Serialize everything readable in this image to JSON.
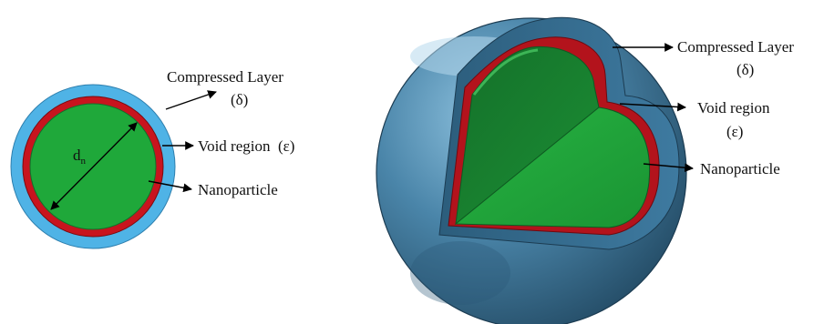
{
  "figure": {
    "left_diagram": {
      "diameter_symbol": "d",
      "diameter_subscript": "n",
      "labels": {
        "compressed_layer": "Compressed Layer",
        "compressed_layer_symbol": "(δ)",
        "void_region": "Void region  (ε)",
        "nanoparticle": "Nanoparticle"
      }
    },
    "right_diagram": {
      "labels": {
        "compressed_layer": "Compressed Layer",
        "compressed_layer_symbol": "(δ)",
        "void_region": "Void region",
        "void_region_symbol": "(ε)",
        "nanoparticle": "Nanoparticle"
      }
    },
    "colors": {
      "compressed_layer_2d": "#4fb3e6",
      "void_region": "#c8141e",
      "nanoparticle": "#1fa83a",
      "outer_shell_3d": "#3d7497",
      "outer_shell_3d_light": "#7fb3d3",
      "outer_shell_3d_dark": "#24506e"
    }
  }
}
